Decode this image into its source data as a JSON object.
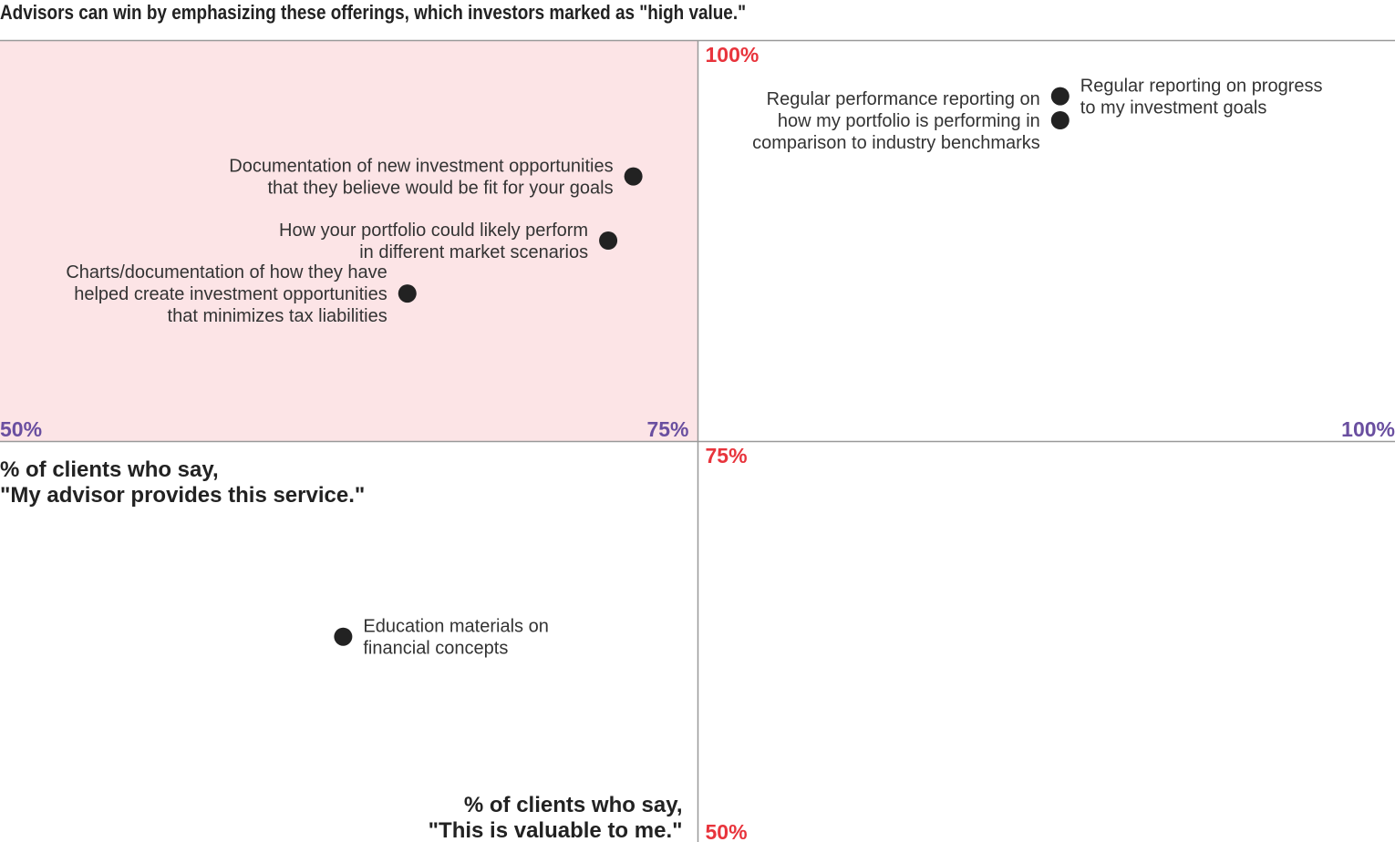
{
  "chart_data": {
    "type": "scatter",
    "title": "Advisors can win by emphasizing these offerings, which investors marked as \"high value.\"",
    "xlabel": [
      "% of clients who say,",
      "\"My advisor provides this service.\""
    ],
    "ylabel": [
      "% of clients who say,",
      "\"This is valuable to me.\""
    ],
    "xlim": [
      50,
      100
    ],
    "ylim": [
      50,
      100
    ],
    "x_ticks": [
      "50%",
      "75%",
      "100%"
    ],
    "y_ticks": [
      "100%",
      "75%",
      "50%"
    ],
    "highlight_region": {
      "x": [
        50,
        75
      ],
      "y": [
        75,
        100
      ],
      "color": "#fce4e6"
    },
    "colors": {
      "point": "#222222",
      "x_tick": "#6a4fa0",
      "y_tick": "#e8343c",
      "grid": "#999999"
    },
    "points": [
      {
        "label": [
          "Regular reporting on progress",
          "to my investment goals"
        ],
        "x": 88,
        "y": 96.5,
        "label_side": "right"
      },
      {
        "label": [
          "Regular performance reporting on",
          "how my portfolio is performing in",
          "comparison to industry benchmarks"
        ],
        "x": 88,
        "y": 95,
        "label_side": "left"
      },
      {
        "label": [
          "Documentation of new investment opportunities",
          "that they believe would be fit for your goals"
        ],
        "x": 72.7,
        "y": 91.5,
        "label_side": "left"
      },
      {
        "label": [
          "How your portfolio could likely perform",
          "in different market scenarios"
        ],
        "x": 71.8,
        "y": 87.5,
        "label_side": "left"
      },
      {
        "label": [
          "Charts/documentation of how they have",
          "helped create investment opportunities",
          "that minimizes tax liabilities"
        ],
        "x": 64.6,
        "y": 84.2,
        "label_side": "left"
      },
      {
        "label": [
          "Education materials on",
          "financial concepts"
        ],
        "x": 62.3,
        "y": 62.8,
        "label_side": "right"
      }
    ]
  }
}
